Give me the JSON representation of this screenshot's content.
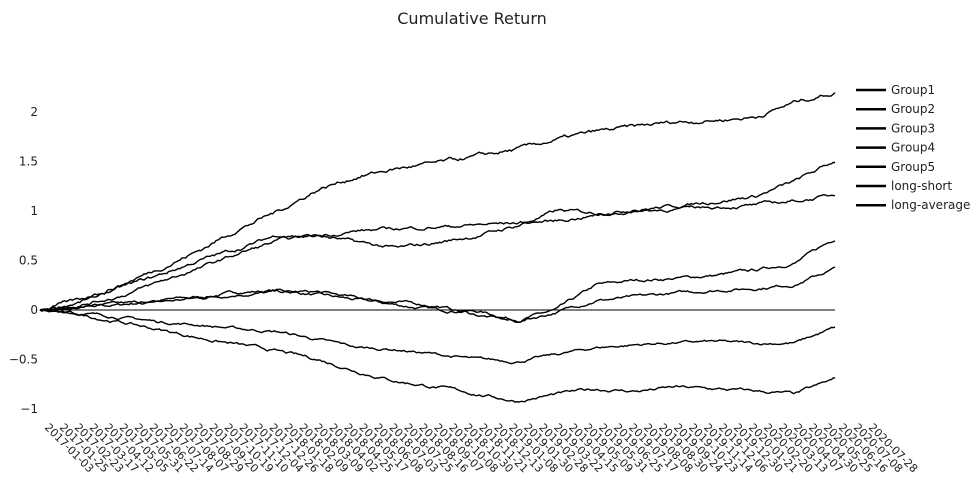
{
  "chart_data": {
    "type": "line",
    "title": "Cumulative Return",
    "xlabel": "",
    "ylabel": "",
    "ylim": [
      -1.05,
      2.4
    ],
    "yticks": [
      {
        "value": 2,
        "label": "2"
      },
      {
        "value": 1.5,
        "label": "1.5"
      },
      {
        "value": 1,
        "label": "1"
      },
      {
        "value": 0.5,
        "label": "0.5"
      },
      {
        "value": 0,
        "label": "0"
      },
      {
        "value": -0.5,
        "label": "−0.5"
      },
      {
        "value": -1,
        "label": "−1"
      }
    ],
    "zero_line": true,
    "grid": false,
    "legend_position": "right",
    "x_start": "2017-01-03",
    "x_end": "2020-07-28",
    "x_tick_labels": [
      "2017-01-03",
      "2017-01-25",
      "2017-02-23",
      "2017-03-17",
      "2017-04-12",
      "2017-05-05",
      "2017-05-31",
      "2017-06-22",
      "2017-07-14",
      "2017-08-07",
      "2017-08-29",
      "2017-09-20",
      "2017-10-19",
      "2017-11-10",
      "2017-12-04",
      "2017-12-26",
      "2018-01-18",
      "2018-02-09",
      "2018-03-09",
      "2018-04-02",
      "2018-04-25",
      "2018-05-17",
      "2018-06-08",
      "2018-07-03",
      "2018-07-25",
      "2018-08-16",
      "2018-09-07",
      "2018-10-08",
      "2018-10-30",
      "2018-11-21",
      "2018-12-13",
      "2019-01-08",
      "2019-01-30",
      "2019-02-28",
      "2019-03-22",
      "2019-04-15",
      "2019-05-09",
      "2019-05-31",
      "2019-06-25",
      "2019-07-17",
      "2019-08-08",
      "2019-08-30",
      "2019-09-24",
      "2019-10-23",
      "2019-11-14",
      "2019-12-06",
      "2019-12-30",
      "2020-01-21",
      "2020-02-20",
      "2020-03-13",
      "2020-04-07",
      "2020-04-30",
      "2020-05-25",
      "2020-06-16",
      "2020-07-08",
      "2020-07-28"
    ],
    "series_x": [
      0,
      0.05,
      0.1,
      0.15,
      0.2,
      0.25,
      0.3,
      0.35,
      0.4,
      0.45,
      0.5,
      0.55,
      0.6,
      0.65,
      0.7,
      0.75,
      0.8,
      0.85,
      0.9,
      0.95,
      1.0
    ],
    "series": [
      {
        "name": "Group1",
        "values": [
          0.0,
          0.02,
          0.05,
          0.1,
          0.13,
          0.18,
          0.2,
          0.15,
          0.1,
          0.05,
          0.0,
          -0.01,
          -0.1,
          0.0,
          0.25,
          0.3,
          0.32,
          0.35,
          0.4,
          0.48,
          0.72
        ]
      },
      {
        "name": "Group2",
        "values": [
          0.0,
          0.03,
          0.06,
          0.08,
          0.12,
          0.16,
          0.18,
          0.18,
          0.12,
          0.08,
          0.04,
          -0.05,
          -0.12,
          -0.02,
          0.1,
          0.13,
          0.17,
          0.2,
          0.22,
          0.26,
          0.42
        ]
      },
      {
        "name": "Group3",
        "values": [
          0.0,
          -0.03,
          -0.07,
          -0.12,
          -0.15,
          -0.19,
          -0.22,
          -0.3,
          -0.38,
          -0.4,
          -0.45,
          -0.5,
          -0.52,
          -0.45,
          -0.38,
          -0.35,
          -0.33,
          -0.32,
          -0.34,
          -0.33,
          -0.18
        ]
      },
      {
        "name": "Group4",
        "values": [
          0.0,
          -0.05,
          -0.12,
          -0.2,
          -0.28,
          -0.35,
          -0.42,
          -0.5,
          -0.62,
          -0.72,
          -0.78,
          -0.85,
          -0.92,
          -0.85,
          -0.8,
          -0.82,
          -0.78,
          -0.8,
          -0.82,
          -0.85,
          -0.7
        ]
      },
      {
        "name": "Group5",
        "values": [
          0.0,
          0.08,
          0.22,
          0.35,
          0.5,
          0.62,
          0.76,
          0.75,
          0.68,
          0.62,
          0.68,
          0.75,
          0.85,
          1.0,
          0.98,
          1.02,
          1.05,
          1.1,
          1.15,
          1.3,
          1.5
        ]
      },
      {
        "name": "long-short",
        "values": [
          0.0,
          0.1,
          0.25,
          0.42,
          0.6,
          0.82,
          1.0,
          1.22,
          1.35,
          1.43,
          1.48,
          1.55,
          1.62,
          1.72,
          1.8,
          1.85,
          1.9,
          1.92,
          1.95,
          2.1,
          2.2
        ]
      },
      {
        "name": "long-average",
        "values": [
          0.0,
          0.05,
          0.14,
          0.28,
          0.42,
          0.57,
          0.7,
          0.75,
          0.8,
          0.82,
          0.84,
          0.86,
          0.88,
          0.9,
          0.96,
          1.0,
          1.02,
          1.04,
          1.06,
          1.1,
          1.16
        ]
      }
    ]
  }
}
